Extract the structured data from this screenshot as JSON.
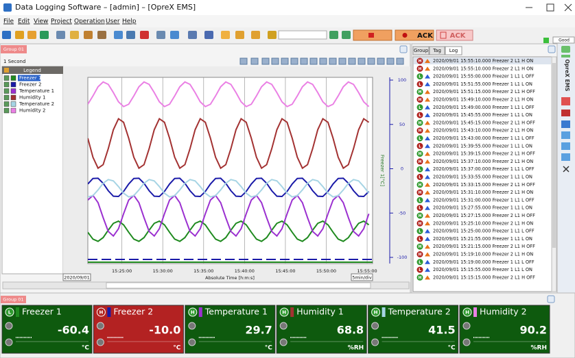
{
  "window": {
    "title": "Data Logging Software – [admin] – [OpreX EMS]",
    "status": "Good",
    "side_label": "OpreX EMS"
  },
  "menu": [
    "File",
    "Edit",
    "View",
    "Project",
    "Operation",
    "User",
    "Help"
  ],
  "toolbar": {
    "ack_labels": [
      "ACK",
      "ACK"
    ]
  },
  "trend": {
    "tab": "Group 01"
  },
  "chart_data": {
    "type": "line",
    "interval": "1 Second",
    "legend_title": "Legend",
    "y_label": "Freezer 1[°C]",
    "x_label": "Absolute Time [h:m:s]",
    "start_label": "2020/09/01",
    "div_label": "5min/div",
    "xlim": [
      55250,
      57340
    ],
    "xticks": [
      {
        "value": 55500,
        "label": "15:25:00"
      },
      {
        "value": 55800,
        "label": "15:30:00"
      },
      {
        "value": 56100,
        "label": "15:35:00"
      },
      {
        "value": 56400,
        "label": "15:40:00"
      },
      {
        "value": 56700,
        "label": "15:45:00"
      },
      {
        "value": 57000,
        "label": "15:50:00"
      },
      {
        "value": 57300,
        "label": "15:55:00"
      }
    ],
    "ylim": [
      -100,
      100
    ],
    "yticks": [
      100,
      50,
      0,
      -50,
      -100
    ],
    "grid": true,
    "axis_color": "#1a1aaa",
    "x": [
      55250,
      55287.5,
      55325,
      55362.5,
      55400,
      55437.5,
      55475,
      55512.5,
      55550,
      55587.5,
      55625,
      55662.5,
      55700,
      55737.5,
      55775,
      55812.5,
      55850,
      55887.5,
      55925,
      55962.5,
      56000,
      56037.5,
      56075,
      56112.5,
      56150,
      56187.5,
      56225,
      56262.5,
      56300,
      56337.5,
      56375,
      56412.5,
      56450,
      56487.5,
      56525,
      56562.5,
      56600,
      56637.5,
      56675,
      56712.5,
      56750,
      56787.5,
      56825,
      56862.5,
      56900,
      56937.5,
      56975,
      57012.5,
      57050,
      57087.5,
      57125,
      57162.5,
      57200,
      57237.5,
      57275,
      57312.5
    ],
    "series": [
      {
        "name": "Freezer 1",
        "color": "#1f8a1f",
        "values": [
          -71.7,
          -79.4,
          -81.9,
          -77.7,
          -69.3,
          -61.6,
          -59.1,
          -63.3,
          -71.7,
          -79.4,
          -81.9,
          -77.7,
          -69.3,
          -61.6,
          -59.1,
          -63.3,
          -71.7,
          -79.4,
          -81.9,
          -77.7,
          -69.3,
          -61.6,
          -59.1,
          -63.3,
          -71.7,
          -79.4,
          -81.9,
          -77.7,
          -69.3,
          -61.6,
          -59.1,
          -63.3,
          -71.7,
          -79.4,
          -81.9,
          -77.7,
          -69.3,
          -61.6,
          -59.1,
          -63.3,
          -71.7,
          -79.4,
          -81.9,
          -77.7,
          -69.3,
          -61.6,
          -59.1,
          -63.3,
          -71.7,
          -79.4,
          -81.9,
          -77.7,
          -69.3,
          -61.6,
          -59.1,
          -63.3
        ]
      },
      {
        "name": "Freezer 2",
        "color": "#1a1aa8",
        "values": [
          -17.2,
          -11,
          -10.7,
          -16.4,
          -24.8,
          -31,
          -31.3,
          -25.6,
          -17.2,
          -11,
          -10.7,
          -16.4,
          -24.8,
          -31,
          -31.3,
          -25.6,
          -17.2,
          -11,
          -10.7,
          -16.4,
          -24.8,
          -31,
          -31.3,
          -25.6,
          -17.2,
          -11,
          -10.7,
          -16.4,
          -24.8,
          -31,
          -31.3,
          -25.6,
          -17.2,
          -11,
          -10.7,
          -16.4,
          -24.8,
          -31,
          -31.3,
          -25.6,
          -17.2,
          -11,
          -10.7,
          -16.4,
          -24.8,
          -31,
          -31.3,
          -25.6,
          -17.2,
          -11,
          -10.7,
          -16.4,
          -24.8,
          -31,
          -31.3,
          -25.6
        ]
      },
      {
        "name": "Temperature 1",
        "color": "#9b30d0",
        "values": [
          -35.3,
          -30.1,
          -38.3,
          -55.2,
          -70.7,
          -75.9,
          -67.7,
          -50.8,
          -35.3,
          -30.1,
          -38.3,
          -55.2,
          -70.7,
          -75.9,
          -67.7,
          -50.8,
          -35.3,
          -30.1,
          -38.3,
          -55.2,
          -70.7,
          -75.9,
          -67.7,
          -50.8,
          -35.3,
          -30.1,
          -38.3,
          -55.2,
          -70.7,
          -75.9,
          -67.7,
          -50.8,
          -35.3,
          -30.1,
          -38.3,
          -55.2,
          -70.7,
          -75.9,
          -67.7,
          -50.8,
          -35.3,
          -30.1,
          -38.3,
          -55.2,
          -70.7,
          -75.9,
          -67.7,
          -50.8,
          -35.3,
          -30.1,
          -38.3,
          -55.2,
          -70.7,
          -75.9,
          -67.7,
          -50.8
        ]
      },
      {
        "name": "Humidity 1",
        "color": "#a33232",
        "values": [
          34.4,
          13,
          0.6,
          4.6,
          22.6,
          44,
          56.4,
          52.4,
          34.4,
          13,
          0.6,
          4.6,
          22.6,
          44,
          56.4,
          52.4,
          34.4,
          13,
          0.6,
          4.6,
          22.6,
          44,
          56.4,
          52.4,
          34.4,
          13,
          0.6,
          4.6,
          22.6,
          44,
          56.4,
          52.4,
          34.4,
          13,
          0.6,
          4.6,
          22.6,
          44,
          56.4,
          52.4,
          34.4,
          13,
          0.6,
          4.6,
          22.6,
          44,
          56.4,
          52.4,
          34.4,
          13,
          0.6,
          4.6,
          22.6,
          44,
          56.4,
          52.4
        ]
      },
      {
        "name": "Temperature 2",
        "color": "#a6d4e4",
        "values": [
          -31.8,
          -30.3,
          -23.9,
          -16.4,
          -12.2,
          -13.7,
          -20.1,
          -27.6,
          -31.8,
          -30.3,
          -23.9,
          -16.4,
          -12.2,
          -13.7,
          -20.1,
          -27.6,
          -31.8,
          -30.3,
          -23.9,
          -16.4,
          -12.2,
          -13.7,
          -20.1,
          -27.6,
          -31.8,
          -30.3,
          -23.9,
          -16.4,
          -12.2,
          -13.7,
          -20.1,
          -27.6,
          -31.8,
          -30.3,
          -23.9,
          -16.4,
          -12.2,
          -13.7,
          -20.1,
          -27.6,
          -31.8,
          -30.3,
          -23.9,
          -16.4,
          -12.2,
          -13.7,
          -20.1,
          -27.6,
          -31.8,
          -30.3,
          -23.9,
          -16.4,
          -12.2,
          -13.7,
          -20.1,
          -27.6
        ]
      },
      {
        "name": "Humidity 2",
        "color": "#ea80e4",
        "values": [
          72.8,
          82.1,
          92.5,
          97.9,
          95.2,
          85.9,
          75.5,
          70.1,
          72.8,
          82.1,
          92.5,
          97.9,
          95.2,
          85.9,
          75.5,
          70.1,
          72.8,
          82.1,
          92.5,
          97.9,
          95.2,
          85.9,
          75.5,
          70.1,
          72.8,
          82.1,
          92.5,
          97.9,
          95.2,
          85.9,
          75.5,
          70.1,
          72.8,
          82.1,
          92.5,
          97.9,
          95.2,
          85.9,
          75.5,
          70.1,
          72.8,
          82.1,
          92.5,
          97.9,
          95.2,
          85.9,
          75.5,
          70.1,
          72.8,
          82.1,
          92.5,
          97.9,
          95.2,
          85.9,
          75.5,
          70.1
        ]
      }
    ]
  },
  "log": {
    "tabs": [
      "Group",
      "Tag",
      "Log"
    ],
    "entries": [
      {
        "icon": "H",
        "color": "#b0201c",
        "arrow": "#e8731a",
        "text": "2020/09/01 15:55:10.000 Freezer 2 L1 H ON"
      },
      {
        "icon": "H",
        "color": "#b0201c",
        "arrow": "#e8731a",
        "text": "2020/09/01 15:55:10.000 Freezer 2 L1 H ON"
      },
      {
        "icon": "L",
        "color": "#2f9a2f",
        "arrow": "#2a5cd6",
        "text": "2020/09/01 15:55:00.000 Freezer 1 L1 L OFF"
      },
      {
        "icon": "L",
        "color": "#b0201c",
        "arrow": "#2a5cd6",
        "text": "2020/09/01 15:51:55.000 Freezer 1 L1 L ON"
      },
      {
        "icon": "H",
        "color": "#2f9a2f",
        "arrow": "#e8731a",
        "text": "2020/09/01 15:51:15.000 Freezer 2 L1 H OFF"
      },
      {
        "icon": "H",
        "color": "#b0201c",
        "arrow": "#e8731a",
        "text": "2020/09/01 15:49:10.000 Freezer 2 L1 H ON"
      },
      {
        "icon": "L",
        "color": "#2f9a2f",
        "arrow": "#2a5cd6",
        "text": "2020/09/01 15:49:00.000 Freezer 1 L1 L OFF"
      },
      {
        "icon": "L",
        "color": "#b0201c",
        "arrow": "#2a5cd6",
        "text": "2020/09/01 15:45:55.000 Freezer 1 L1 L ON"
      },
      {
        "icon": "H",
        "color": "#2f9a2f",
        "arrow": "#e8731a",
        "text": "2020/09/01 15:45:15.000 Freezer 2 L1 H OFF"
      },
      {
        "icon": "H",
        "color": "#b0201c",
        "arrow": "#e8731a",
        "text": "2020/09/01 15:43:10.000 Freezer 2 L1 H ON"
      },
      {
        "icon": "L",
        "color": "#2f9a2f",
        "arrow": "#2a5cd6",
        "text": "2020/09/01 15:43:00.000 Freezer 1 L1 L OFF"
      },
      {
        "icon": "L",
        "color": "#b0201c",
        "arrow": "#2a5cd6",
        "text": "2020/09/01 15:39:55.000 Freezer 1 L1 L ON"
      },
      {
        "icon": "H",
        "color": "#2f9a2f",
        "arrow": "#e8731a",
        "text": "2020/09/01 15:39:15.000 Freezer 2 L1 H OFF"
      },
      {
        "icon": "H",
        "color": "#b0201c",
        "arrow": "#e8731a",
        "text": "2020/09/01 15:37:10.000 Freezer 2 L1 H ON"
      },
      {
        "icon": "L",
        "color": "#2f9a2f",
        "arrow": "#2a5cd6",
        "text": "2020/09/01 15:37:00.000 Freezer 1 L1 L OFF"
      },
      {
        "icon": "L",
        "color": "#b0201c",
        "arrow": "#2a5cd6",
        "text": "2020/09/01 15:33:55.000 Freezer 1 L1 L ON"
      },
      {
        "icon": "H",
        "color": "#2f9a2f",
        "arrow": "#e8731a",
        "text": "2020/09/01 15:33:15.000 Freezer 2 L1 H OFF"
      },
      {
        "icon": "H",
        "color": "#b0201c",
        "arrow": "#e8731a",
        "text": "2020/09/01 15:31:10.000 Freezer 2 L1 H ON"
      },
      {
        "icon": "L",
        "color": "#2f9a2f",
        "arrow": "#2a5cd6",
        "text": "2020/09/01 15:31:00.000 Freezer 1 L1 L OFF"
      },
      {
        "icon": "L",
        "color": "#b0201c",
        "arrow": "#2a5cd6",
        "text": "2020/09/01 15:27:55.000 Freezer 1 L1 L ON"
      },
      {
        "icon": "H",
        "color": "#2f9a2f",
        "arrow": "#e8731a",
        "text": "2020/09/01 15:27:15.000 Freezer 2 L1 H OFF"
      },
      {
        "icon": "H",
        "color": "#b0201c",
        "arrow": "#e8731a",
        "text": "2020/09/01 15:25:10.000 Freezer 2 L1 H ON"
      },
      {
        "icon": "L",
        "color": "#2f9a2f",
        "arrow": "#2a5cd6",
        "text": "2020/09/01 15:25:00.000 Freezer 1 L1 L OFF"
      },
      {
        "icon": "L",
        "color": "#b0201c",
        "arrow": "#2a5cd6",
        "text": "2020/09/01 15:21:55.000 Freezer 1 L1 L ON"
      },
      {
        "icon": "H",
        "color": "#2f9a2f",
        "arrow": "#e8731a",
        "text": "2020/09/01 15:21:15.000 Freezer 2 L1 H OFF"
      },
      {
        "icon": "H",
        "color": "#b0201c",
        "arrow": "#e8731a",
        "text": "2020/09/01 15:19:10.000 Freezer 2 L1 H ON"
      },
      {
        "icon": "L",
        "color": "#2f9a2f",
        "arrow": "#2a5cd6",
        "text": "2020/09/01 15:19:00.000 Freezer 1 L1 L OFF"
      },
      {
        "icon": "L",
        "color": "#b0201c",
        "arrow": "#2a5cd6",
        "text": "2020/09/01 15:15:55.000 Freezer 1 L1 L ON"
      },
      {
        "icon": "H",
        "color": "#2f9a2f",
        "arrow": "#e8731a",
        "text": "2020/09/01 15:15:15.000 Freezer 2 L1 H OFF"
      }
    ]
  },
  "panel": {
    "tab": "Group 01",
    "tiles": [
      {
        "name": "Freezer 1",
        "color": "#1f8a1f",
        "alarm": "L",
        "alarm_color": "#2f9a2f",
        "background": "#0e5a0e",
        "value": "-60.4",
        "unit": "°C"
      },
      {
        "name": "Freezer 2",
        "color": "#1a1aa8",
        "alarm": "H",
        "alarm_color": "#b0201c",
        "background": "#b32222",
        "value": "-10.0",
        "unit": "°C"
      },
      {
        "name": "Temperature 1",
        "color": "#9b30d0",
        "alarm": "H",
        "alarm_color": "#2f9a2f",
        "background": "#0e5a0e",
        "value": "29.7",
        "unit": "°C"
      },
      {
        "name": "Humidity 1",
        "color": "#a33232",
        "alarm": "H",
        "alarm_color": "#2f9a2f",
        "background": "#0e5a0e",
        "value": "68.8",
        "unit": "%RH"
      },
      {
        "name": "Temperature 2",
        "color": "#a6d4e4",
        "alarm": "H",
        "alarm_color": "#2f9a2f",
        "background": "#0e5a0e",
        "value": "41.5",
        "unit": "°C"
      },
      {
        "name": "Humidity 2",
        "color": "#ea80e4",
        "alarm": "H",
        "alarm_color": "#2f9a2f",
        "background": "#0e5a0e",
        "value": "90.2",
        "unit": "%RH"
      }
    ]
  }
}
